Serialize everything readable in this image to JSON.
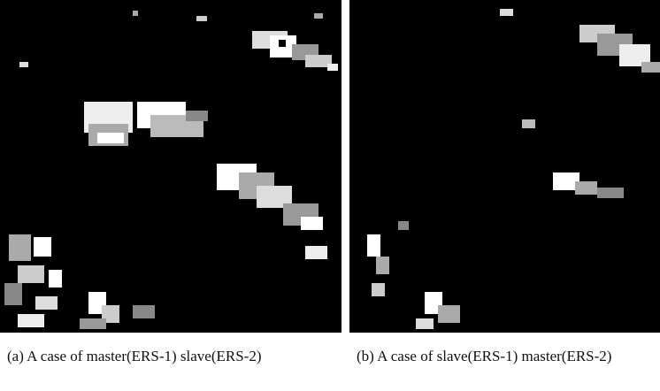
{
  "figure": {
    "panels": [
      {
        "caption": "(a) A case of master(ERS-1) slave(ERS-2)"
      },
      {
        "caption": "(b) A case of slave(ERS-1) master(ERS-2)"
      }
    ]
  }
}
